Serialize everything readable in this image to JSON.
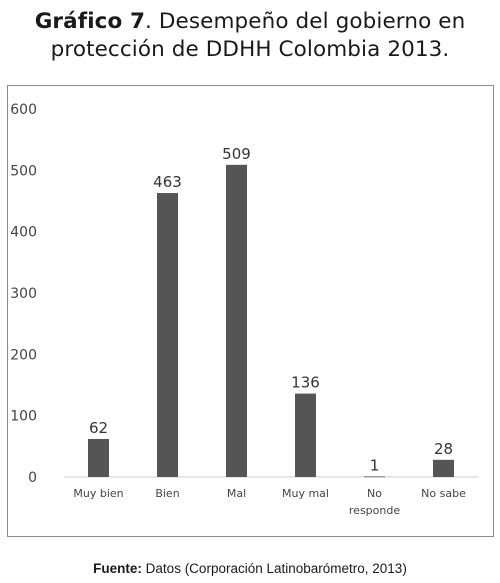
{
  "figure": {
    "title_lead": "Gráfico 7",
    "title_rest": ". Desempeño del gobierno en",
    "title_line2": "protección de DDHH Colombia 2013.",
    "source_lead": "Fuente:",
    "source_rest": " Datos (Corporación Latinobarómetro, 2013)"
  },
  "chart_data": {
    "type": "bar",
    "title": "",
    "xlabel": "",
    "ylabel": "",
    "categories": [
      "Muy bien",
      "Bien",
      "Mal",
      "Muy mal",
      "No responde",
      "No sabe"
    ],
    "category_lines": [
      [
        "Muy bien"
      ],
      [
        "Bien"
      ],
      [
        "Mal"
      ],
      [
        "Muy mal"
      ],
      [
        "No",
        "responde"
      ],
      [
        "No sabe"
      ]
    ],
    "values": [
      62,
      463,
      509,
      136,
      1,
      28
    ],
    "ylim": [
      0,
      600
    ],
    "yticks": [
      0,
      100,
      200,
      300,
      400,
      500,
      600
    ],
    "grid": false,
    "legend": "none",
    "bar_color": "#555555"
  }
}
